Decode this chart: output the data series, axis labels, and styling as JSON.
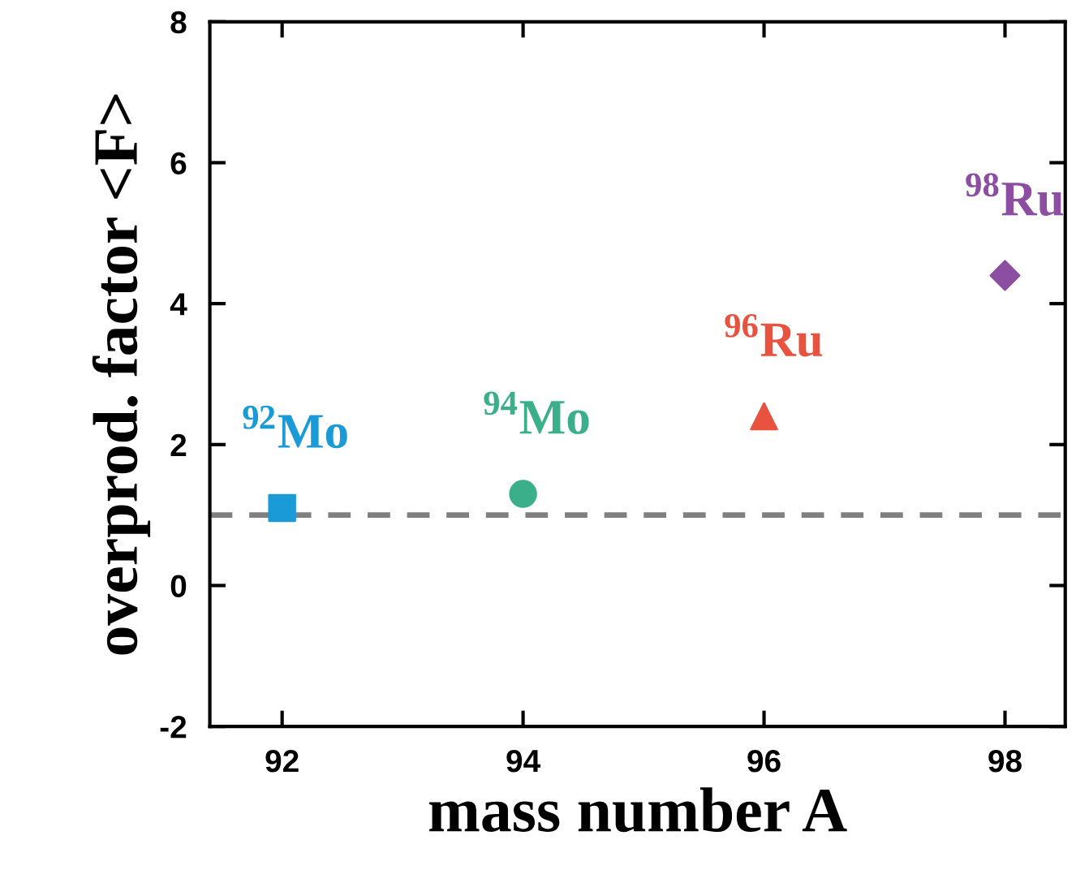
{
  "chart_data": {
    "type": "scatter",
    "xlabel": "mass number A",
    "ylabel": "overprod. factor <F>",
    "xlim": [
      91.4,
      98.5
    ],
    "ylim": [
      -2,
      8
    ],
    "xticks": [
      92,
      94,
      96,
      98
    ],
    "yticks": [
      -2,
      0,
      2,
      4,
      6,
      8
    ],
    "grid": false,
    "legend": false,
    "series": [
      {
        "name": "$^{92}$Mo",
        "color": "#1a9ad6",
        "marker": "square",
        "x": [
          92
        ],
        "values": [
          1.1
        ]
      },
      {
        "name": "$^{94}$Mo",
        "color": "#3aaf8a",
        "marker": "circle",
        "x": [
          94
        ],
        "values": [
          1.3
        ]
      },
      {
        "name": "$^{96}$Ru",
        "color": "#e8533f",
        "marker": "triangle",
        "x": [
          96
        ],
        "values": [
          2.4
        ]
      },
      {
        "name": "$^{98}$Ru",
        "color": "#8b4ea0",
        "marker": "diamond",
        "x": [
          98
        ],
        "values": [
          4.4
        ]
      }
    ],
    "ref_lines": [
      {
        "axis": "y",
        "value": 1,
        "color": "#808080",
        "line_style": "dashed"
      }
    ]
  }
}
